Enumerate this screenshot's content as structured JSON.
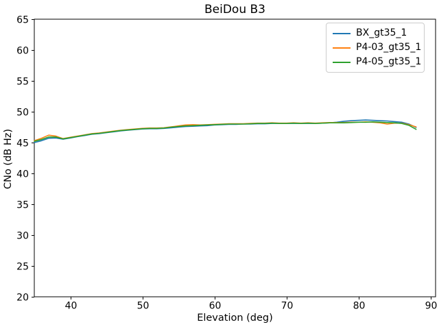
{
  "figure": {
    "title": "BeiDou B3",
    "xlabel": "Elevation (deg)",
    "ylabel": "CNo (dB Hz)"
  },
  "chart_data": {
    "type": "line",
    "title": "BeiDou B3",
    "xlabel": "Elevation (deg)",
    "ylabel": "CNo (dB Hz)",
    "xlim": [
      35,
      90.7
    ],
    "ylim": [
      20,
      65
    ],
    "xticks": [
      40,
      50,
      60,
      70,
      80,
      90
    ],
    "yticks": [
      20,
      25,
      30,
      35,
      40,
      45,
      50,
      55,
      60,
      65
    ],
    "grid": false,
    "legend_position": "upper right",
    "x": [
      35,
      36,
      37,
      38,
      39,
      40,
      41,
      42,
      43,
      44,
      45,
      46,
      47,
      48,
      49,
      50,
      51,
      52,
      53,
      54,
      55,
      56,
      57,
      58,
      59,
      60,
      61,
      62,
      63,
      64,
      65,
      66,
      67,
      68,
      69,
      70,
      71,
      72,
      73,
      74,
      75,
      76,
      77,
      78,
      79,
      80,
      81,
      82,
      83,
      84,
      85,
      86,
      87,
      88
    ],
    "series": [
      {
        "name": "BX_gt35_1",
        "color": "#1f77b4",
        "values": [
          45.0,
          45.3,
          45.7,
          45.75,
          45.55,
          45.75,
          45.95,
          46.15,
          46.35,
          46.45,
          46.6,
          46.75,
          46.9,
          47.0,
          47.1,
          47.2,
          47.25,
          47.25,
          47.3,
          47.4,
          47.5,
          47.6,
          47.65,
          47.7,
          47.75,
          47.85,
          47.9,
          47.95,
          47.95,
          48.0,
          48.0,
          48.05,
          48.05,
          48.1,
          48.1,
          48.1,
          48.1,
          48.1,
          48.1,
          48.1,
          48.15,
          48.2,
          48.3,
          48.45,
          48.55,
          48.6,
          48.65,
          48.6,
          48.55,
          48.5,
          48.4,
          48.3,
          48.0,
          47.45
        ]
      },
      {
        "name": "P4-03_gt35_1",
        "color": "#ff7f0e",
        "values": [
          45.3,
          45.7,
          46.2,
          46.05,
          45.65,
          45.85,
          46.05,
          46.25,
          46.45,
          46.55,
          46.7,
          46.85,
          47.0,
          47.1,
          47.2,
          47.3,
          47.35,
          47.35,
          47.4,
          47.55,
          47.7,
          47.85,
          47.9,
          47.85,
          47.9,
          47.95,
          48.0,
          48.05,
          48.05,
          48.05,
          48.1,
          48.15,
          48.15,
          48.2,
          48.15,
          48.15,
          48.2,
          48.15,
          48.2,
          48.15,
          48.2,
          48.25,
          48.25,
          48.25,
          48.3,
          48.3,
          48.35,
          48.3,
          48.2,
          48.0,
          48.15,
          48.15,
          47.9,
          47.55
        ]
      },
      {
        "name": "P4-05_gt35_1",
        "color": "#2ca02c",
        "values": [
          45.2,
          45.5,
          45.9,
          45.9,
          45.6,
          45.8,
          46.0,
          46.2,
          46.4,
          46.5,
          46.65,
          46.8,
          46.95,
          47.05,
          47.15,
          47.25,
          47.3,
          47.3,
          47.35,
          47.5,
          47.6,
          47.7,
          47.75,
          47.8,
          47.85,
          47.9,
          47.95,
          48.0,
          48.0,
          48.0,
          48.05,
          48.1,
          48.1,
          48.15,
          48.1,
          48.1,
          48.15,
          48.1,
          48.15,
          48.1,
          48.15,
          48.2,
          48.2,
          48.2,
          48.25,
          48.3,
          48.3,
          48.35,
          48.3,
          48.25,
          48.2,
          48.1,
          47.8,
          47.15
        ]
      }
    ]
  }
}
